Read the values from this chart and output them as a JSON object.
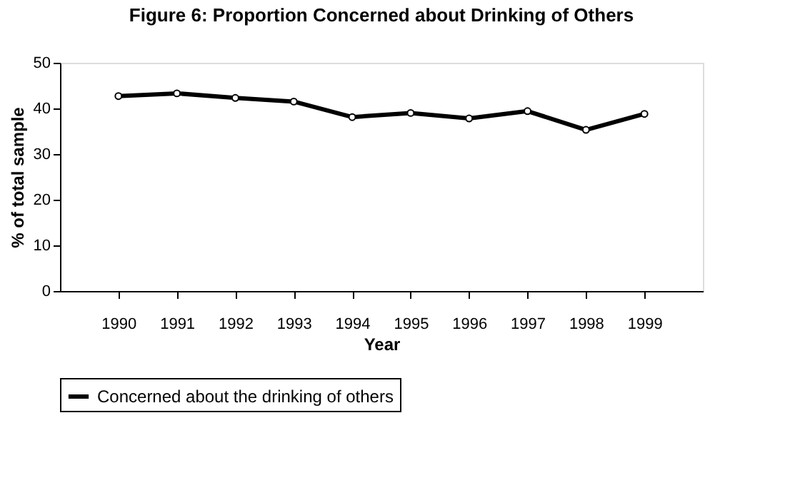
{
  "chart_data": {
    "type": "line",
    "title": "Figure 6: Proportion Concerned about Drinking of Others",
    "xlabel": "Year",
    "ylabel": "% of total sample",
    "categories": [
      "1990",
      "1991",
      "1992",
      "1993",
      "1994",
      "1995",
      "1996",
      "1997",
      "1998",
      "1999"
    ],
    "series": [
      {
        "name": "Concerned about the drinking of others",
        "color": "#000000",
        "values": [
          42.7,
          43.3,
          42.3,
          41.5,
          38.1,
          39.0,
          37.8,
          39.4,
          35.3,
          38.8
        ]
      }
    ],
    "ylim": [
      0,
      50
    ],
    "yticks": [
      0,
      10,
      20,
      30,
      40,
      50
    ],
    "grid": false,
    "legend": "bottom",
    "marker": "circle",
    "line_style": "solid"
  }
}
